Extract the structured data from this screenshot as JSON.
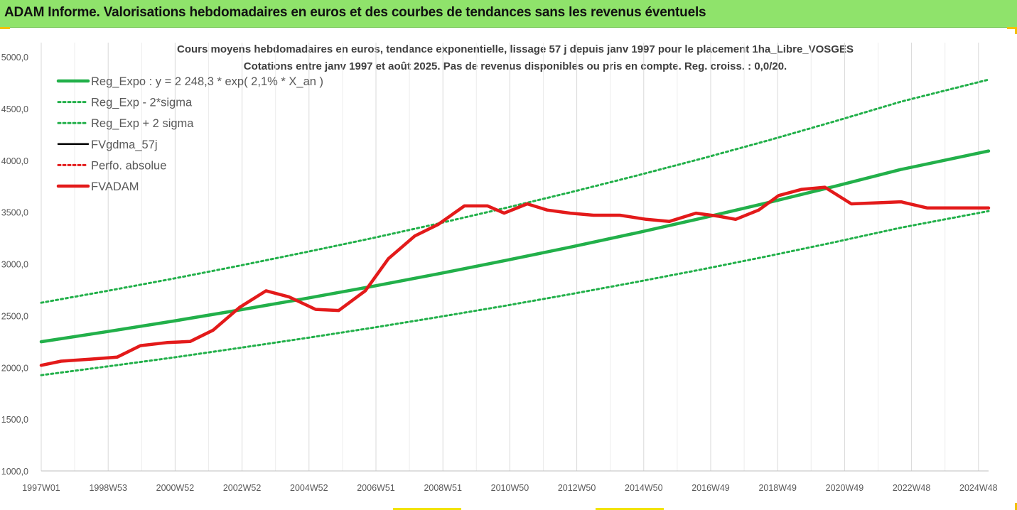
{
  "header": {
    "title": "ADAM Informe. Valorisations hebdomadaires en euros et des courbes de tendances sans les revenus éventuels"
  },
  "colors": {
    "header_bg": "#8fe36b",
    "trend_green": "#22b04a",
    "band_green": "#22b04a",
    "fv_black": "#000000",
    "perf_red": "#e31a1a",
    "fvadam_red": "#e31a1a",
    "axis_text": "#595959"
  },
  "chart_data": {
    "type": "line",
    "title": "Cours moyens hebdomadaires en euros, tendance exponentielle, lissage 57 j depuis janv 1997 pour le placement 1ha_Libre_VOSGES",
    "subtitle": "Cotations entre janv 1997 et août 2025.  Pas de revenus disponibles ou pris en compte. Reg. croiss. : 0,0/20.",
    "x_tick_labels": [
      "1997W01",
      "1998W53",
      "2000W52",
      "2002W52",
      "2004W52",
      "2006W51",
      "2008W51",
      "2010W50",
      "2012W50",
      "2014W50",
      "2016W49",
      "2018W49",
      "2020W49",
      "2022W48",
      "2024W48"
    ],
    "y_tick_labels": [
      "1000,0",
      "1500,0",
      "2000,0",
      "2500,0",
      "3000,0",
      "3500,0",
      "4000,0",
      "4500,0",
      "5000,0"
    ],
    "ylim": [
      1000,
      5000
    ],
    "xlim": [
      1997.0,
      2025.65
    ],
    "legend_position": "top-left",
    "grid": "vertical",
    "series": [
      {
        "name": "Reg_Expo : y = 2 248,3 * exp( 2,1% *  X_an )",
        "style": "solid-thick",
        "color": "#22b04a",
        "x": [
          1997.0,
          1999.0,
          2001.0,
          2003.0,
          2005.0,
          2007.0,
          2009.0,
          2011.0,
          2013.0,
          2015.0,
          2017.0,
          2019.0,
          2021.0,
          2023.0,
          2025.65
        ],
        "values": [
          2248,
          2346,
          2448,
          2555,
          2666,
          2782,
          2903,
          3030,
          3162,
          3299,
          3443,
          3593,
          3749,
          3912,
          4090
        ]
      },
      {
        "name": "Reg_Exp - 2*sigma",
        "style": "dotted",
        "color": "#22b04a",
        "x": [
          1997.0,
          1999.0,
          2001.0,
          2003.0,
          2005.0,
          2007.0,
          2009.0,
          2011.0,
          2013.0,
          2015.0,
          2017.0,
          2019.0,
          2021.0,
          2023.0,
          2025.65
        ],
        "values": [
          1925,
          2009,
          2096,
          2188,
          2283,
          2382,
          2486,
          2594,
          2707,
          2825,
          2948,
          3076,
          3210,
          3350,
          3510
        ]
      },
      {
        "name": "Reg_Exp + 2 sigma",
        "style": "dotted",
        "color": "#22b04a",
        "x": [
          1997.0,
          1999.0,
          2001.0,
          2003.0,
          2005.0,
          2007.0,
          2009.0,
          2011.0,
          2013.0,
          2015.0,
          2017.0,
          2019.0,
          2021.0,
          2023.0,
          2025.65
        ],
        "values": [
          2625,
          2739,
          2858,
          2983,
          3113,
          3248,
          3389,
          3537,
          3691,
          3852,
          4019,
          4194,
          4377,
          4567,
          4780
        ]
      },
      {
        "name": "FVgdma_57j",
        "style": "solid",
        "color": "#000000",
        "x": [
          1997.0,
          1997.6,
          1998.5,
          1999.3,
          2000.0,
          2000.8,
          2001.5,
          2002.2,
          2003.0,
          2003.8,
          2004.5,
          2005.3,
          2006.0,
          2006.8,
          2007.5,
          2008.3,
          2009.0,
          2009.8,
          2010.5,
          2011.0,
          2011.7,
          2012.3,
          2013.0,
          2013.7,
          2014.5,
          2015.3,
          2016.0,
          2016.8,
          2017.5,
          2018.0,
          2018.7,
          2019.3,
          2020.0,
          2020.7,
          2021.5,
          2022.3,
          2023.0,
          2023.8,
          2024.5,
          2025.3,
          2025.65
        ],
        "values": [
          2020,
          2060,
          2080,
          2100,
          2210,
          2240,
          2250,
          2360,
          2580,
          2740,
          2680,
          2560,
          2550,
          2740,
          3050,
          3270,
          3380,
          3560,
          3560,
          3490,
          3580,
          3520,
          3490,
          3470,
          3470,
          3430,
          3410,
          3490,
          3460,
          3430,
          3520,
          3660,
          3720,
          3740,
          3580,
          3590,
          3600,
          3540,
          3540,
          3540,
          3540
        ]
      },
      {
        "name": "Perfo. absolue",
        "style": "dotted",
        "color": "#e31a1a",
        "x": [
          1997.0,
          1997.6,
          1998.5,
          1999.3,
          2000.0,
          2000.8,
          2001.5,
          2002.2,
          2003.0,
          2003.8,
          2004.5,
          2005.3,
          2006.0,
          2006.8,
          2007.5,
          2008.3,
          2009.0,
          2009.8,
          2010.5,
          2011.0,
          2011.7,
          2012.3,
          2013.0,
          2013.7,
          2014.5,
          2015.3,
          2016.0,
          2016.8,
          2017.5,
          2018.0,
          2018.7,
          2019.3,
          2020.0,
          2020.7,
          2021.5,
          2022.3,
          2023.0,
          2023.8,
          2024.5,
          2025.3,
          2025.65
        ],
        "values": [
          2020,
          2060,
          2080,
          2100,
          2210,
          2240,
          2250,
          2360,
          2580,
          2740,
          2680,
          2560,
          2550,
          2740,
          3050,
          3270,
          3380,
          3560,
          3560,
          3490,
          3580,
          3520,
          3490,
          3470,
          3470,
          3430,
          3410,
          3490,
          3460,
          3430,
          3520,
          3660,
          3720,
          3740,
          3580,
          3590,
          3600,
          3540,
          3540,
          3540,
          3540
        ]
      },
      {
        "name": "FVADAM",
        "style": "solid-thick",
        "color": "#e31a1a",
        "x": [
          1997.0,
          1997.6,
          1998.5,
          1999.3,
          2000.0,
          2000.8,
          2001.5,
          2002.2,
          2003.0,
          2003.8,
          2004.5,
          2005.3,
          2006.0,
          2006.8,
          2007.5,
          2008.3,
          2009.0,
          2009.8,
          2010.5,
          2011.0,
          2011.7,
          2012.3,
          2013.0,
          2013.7,
          2014.5,
          2015.3,
          2016.0,
          2016.8,
          2017.5,
          2018.0,
          2018.7,
          2019.3,
          2020.0,
          2020.7,
          2021.5,
          2022.3,
          2023.0,
          2023.8,
          2024.5,
          2025.3,
          2025.65
        ],
        "values": [
          2020,
          2060,
          2080,
          2100,
          2210,
          2240,
          2250,
          2360,
          2580,
          2740,
          2680,
          2560,
          2550,
          2740,
          3050,
          3270,
          3380,
          3560,
          3560,
          3490,
          3580,
          3520,
          3490,
          3470,
          3470,
          3430,
          3410,
          3490,
          3460,
          3430,
          3520,
          3660,
          3720,
          3740,
          3580,
          3590,
          3600,
          3540,
          3540,
          3540,
          3540
        ]
      }
    ]
  }
}
